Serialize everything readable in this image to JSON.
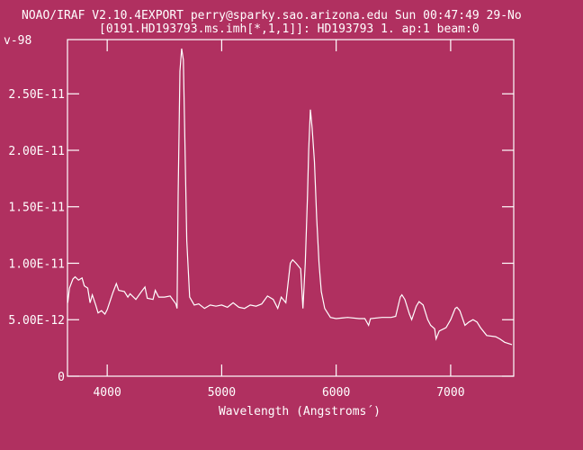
{
  "header": {
    "line1": "NOAO/IRAF V2.10.4EXPORT perry@sparky.sao.arizona.edu Sun 00:47:49 29-No",
    "line2": "[0191.HD193793.ms.imh[*,1,1]]: HD193793 1. ap:1 beam:0",
    "corner_label": "v-98"
  },
  "colors": {
    "background": "#b03060",
    "foreground": "#ffffff"
  },
  "chart_data": {
    "type": "line",
    "title": "",
    "xlabel": "Wavelength (Angstroms´)",
    "ylabel": "",
    "xlim": [
      3653,
      7551
    ],
    "ylim": [
      0,
      2.98e-11
    ],
    "grid": false,
    "x_ticks": [
      4000,
      5000,
      6000,
      7000
    ],
    "x_tick_labels": [
      "4000",
      "5000",
      "6000",
      "7000"
    ],
    "y_ticks": [
      0,
      5e-12,
      1e-11,
      1.5e-11,
      2e-11,
      2.5e-11
    ],
    "y_tick_labels": [
      "0",
      "5.00E-12",
      "1.00E-11",
      "1.50E-11",
      "2.00E-11",
      "2.50E-11"
    ],
    "series": [
      {
        "x": [
          3655,
          3670,
          3700,
          3720,
          3750,
          3780,
          3800,
          3830,
          3850,
          3870,
          3900,
          3920,
          3950,
          3980,
          4000,
          4050,
          4080,
          4100,
          4150,
          4180,
          4200,
          4250,
          4300,
          4330,
          4350,
          4400,
          4420,
          4450,
          4500,
          4550,
          4600,
          4610,
          4620,
          4635,
          4650,
          4665,
          4680,
          4695,
          4720,
          4760,
          4800,
          4850,
          4900,
          4950,
          5000,
          5050,
          5100,
          5150,
          5200,
          5250,
          5300,
          5350,
          5400,
          5450,
          5490,
          5520,
          5560,
          5600,
          5620,
          5650,
          5690,
          5710,
          5730,
          5750,
          5760,
          5775,
          5790,
          5810,
          5830,
          5850,
          5870,
          5900,
          5950,
          6000,
          6100,
          6200,
          6250,
          6283,
          6300,
          6400,
          6480,
          6520,
          6560,
          6574,
          6600,
          6640,
          6660,
          6700,
          6724,
          6760,
          6800,
          6826,
          6860,
          6873,
          6900,
          6960,
          7000,
          7040,
          7055,
          7080,
          7125,
          7160,
          7196,
          7230,
          7260,
          7315,
          7393,
          7430,
          7472,
          7535
        ],
        "y": [
          6.5e-12,
          7.8e-12,
          8.6e-12,
          8.8e-12,
          8.5e-12,
          8.7e-12,
          8e-12,
          7.8e-12,
          6.5e-12,
          7.2e-12,
          6.3e-12,
          5.6e-12,
          5.8e-12,
          5.5e-12,
          5.9e-12,
          7.4e-12,
          8.2e-12,
          7.6e-12,
          7.5e-12,
          7e-12,
          7.3e-12,
          6.8e-12,
          7.5e-12,
          7.9e-12,
          6.9e-12,
          6.8e-12,
          7.6e-12,
          7e-12,
          7e-12,
          7.1e-12,
          6.4e-12,
          6e-12,
          1.6e-11,
          2.7e-11,
          2.9e-11,
          2.8e-11,
          2e-11,
          1.2e-11,
          7e-12,
          6.3e-12,
          6.4e-12,
          6e-12,
          6.3e-12,
          6.2e-12,
          6.3e-12,
          6.1e-12,
          6.5e-12,
          6.1e-12,
          6e-12,
          6.3e-12,
          6.2e-12,
          6.4e-12,
          7.1e-12,
          6.8e-12,
          6e-12,
          7e-12,
          6.5e-12,
          1e-11,
          1.03e-11,
          1e-11,
          9.5e-12,
          6e-12,
          1e-11,
          1.6e-11,
          2e-11,
          2.36e-11,
          2.2e-11,
          1.9e-11,
          1.4e-11,
          1e-11,
          7.5e-12,
          6e-12,
          5.2e-12,
          5.1e-12,
          5.2e-12,
          5.1e-12,
          5.1e-12,
          4.5e-12,
          5.1e-12,
          5.2e-12,
          5.2e-12,
          5.3e-12,
          7e-12,
          7.2e-12,
          6.8e-12,
          5.5e-12,
          5e-12,
          6.2e-12,
          6.6e-12,
          6.3e-12,
          5e-12,
          4.5e-12,
          4.2e-12,
          3.3e-12,
          4e-12,
          4.3e-12,
          5e-12,
          6e-12,
          6.1e-12,
          5.8e-12,
          4.5e-12,
          4.8e-12,
          5e-12,
          4.8e-12,
          4.3e-12,
          3.6e-12,
          3.5e-12,
          3.3e-12,
          3e-12,
          2.8e-12
        ]
      }
    ]
  }
}
